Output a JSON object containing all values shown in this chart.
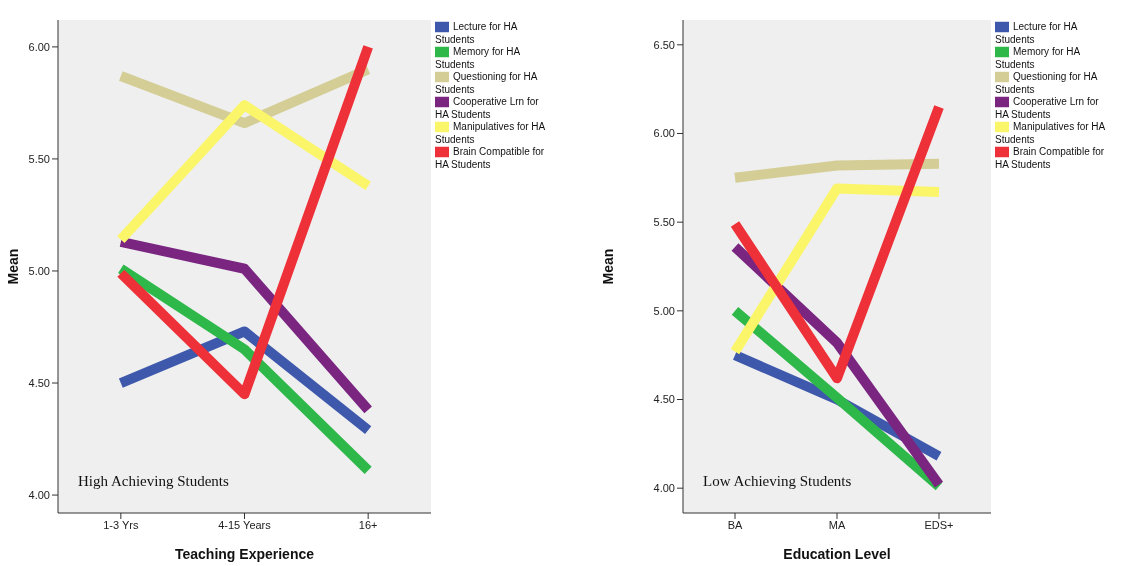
{
  "chart_data": [
    {
      "type": "line",
      "categories": [
        "1-3 Yrs",
        "4-15 Years",
        "16+"
      ],
      "xlabel": "Teaching Experience",
      "ylabel": "Mean",
      "ylim": [
        3.92,
        6.12
      ],
      "yticks": [
        {
          "value": 4,
          "label": "4.00"
        },
        {
          "value": 4.5,
          "label": "4.50"
        },
        {
          "value": 5,
          "label": "5.00"
        },
        {
          "value": 5.5,
          "label": "5.50"
        },
        {
          "value": 6,
          "label": "6.00"
        }
      ],
      "grid": false,
      "legend": "right",
      "marker": "none",
      "line_style": "solid",
      "annotations": [
        "High Achieving Students"
      ],
      "series": [
        {
          "name": "Lecture for HA Students",
          "color": "#3e58ac",
          "values": [
            4.5,
            4.73,
            4.29
          ]
        },
        {
          "name": "Memory for HA Students",
          "color": "#2fb84a",
          "values": [
            5.01,
            4.65,
            4.11
          ]
        },
        {
          "name": "Questioning for HA Students",
          "color": "#d4ce96",
          "values": [
            5.87,
            5.66,
            5.9
          ]
        },
        {
          "name": "Cooperative Lrn for HA Students",
          "color": "#7a2580",
          "values": [
            5.13,
            5.01,
            4.38
          ]
        },
        {
          "name": "Manipulatives for HA Students",
          "color": "#fbf56a",
          "values": [
            5.14,
            5.74,
            5.38
          ]
        },
        {
          "name": "Brain Compatible for HA Students",
          "color": "#ee3038",
          "values": [
            4.99,
            4.45,
            6.0
          ]
        }
      ]
    },
    {
      "type": "line",
      "categories": [
        "BA",
        "MA",
        "EDS+"
      ],
      "xlabel": "Education Level",
      "ylabel": "Mean",
      "ylim": [
        3.86,
        6.64
      ],
      "yticks": [
        {
          "value": 4,
          "label": "4.00"
        },
        {
          "value": 4.5,
          "label": "4.50"
        },
        {
          "value": 5,
          "label": "5.00"
        },
        {
          "value": 5.5,
          "label": "5.50"
        },
        {
          "value": 6,
          "label": "6.00"
        },
        {
          "value": 6.5,
          "label": "6.50"
        }
      ],
      "grid": false,
      "legend": "right",
      "marker": "none",
      "line_style": "solid",
      "annotations": [
        "Low Achieving Students"
      ],
      "series": [
        {
          "name": "Lecture for HA Students",
          "color": "#3e58ac",
          "values": [
            4.75,
            4.5,
            4.18
          ]
        },
        {
          "name": "Memory for HA Students",
          "color": "#2fb84a",
          "values": [
            5.0,
            4.51,
            4.01
          ]
        },
        {
          "name": "Questioning for HA Students",
          "color": "#d4ce96",
          "values": [
            5.75,
            5.82,
            5.83
          ]
        },
        {
          "name": "Cooperative Lrn for HA Students",
          "color": "#7a2580",
          "values": [
            5.36,
            4.82,
            4.02
          ]
        },
        {
          "name": "Manipulatives for HA Students",
          "color": "#fbf56a",
          "values": [
            4.77,
            5.69,
            5.67
          ]
        },
        {
          "name": "Brain Compatible for HA Students",
          "color": "#ee3038",
          "values": [
            5.49,
            4.62,
            6.15
          ]
        }
      ]
    }
  ]
}
